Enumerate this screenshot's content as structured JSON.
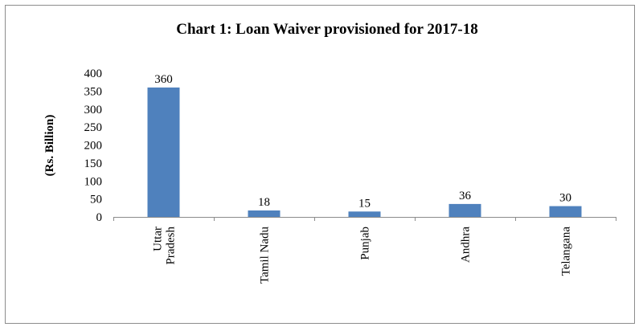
{
  "chart_data": {
    "type": "bar",
    "title": "Chart 1: Loan Waiver provisioned for 2017-18",
    "ylabel": "(Rs. Billion)",
    "xlabel": "",
    "categories": [
      [
        "Uttar",
        "Pradesh"
      ],
      [
        "Tamil Nadu"
      ],
      [
        "Punjab"
      ],
      [
        "Andhra"
      ],
      [
        "Telangana"
      ]
    ],
    "values": [
      360,
      18,
      15,
      36,
      30
    ],
    "data_labels": [
      "360",
      "18",
      "15",
      "36",
      "30"
    ],
    "ylim": [
      0,
      400
    ],
    "yticks": [
      0,
      50,
      100,
      150,
      200,
      250,
      300,
      350,
      400
    ],
    "bar_color": "#4f81bd",
    "grid": false,
    "legend": "none"
  }
}
